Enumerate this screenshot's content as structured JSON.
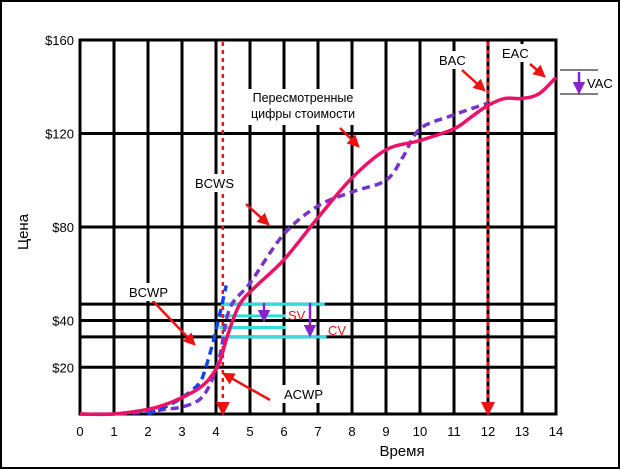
{
  "chart_data": {
    "type": "line",
    "xlabel": "Время",
    "ylabel": "Цена",
    "x_ticks": [
      "0",
      "1",
      "2",
      "3",
      "4",
      "5",
      "6",
      "7",
      "8",
      "9",
      "10",
      "11",
      "12",
      "13",
      "14"
    ],
    "y_ticks": [
      {
        "value": 20,
        "label": "$20"
      },
      {
        "value": 40,
        "label": "$40"
      },
      {
        "value": 80,
        "label": "$80"
      },
      {
        "value": 120,
        "label": "$120"
      },
      {
        "value": 160,
        "label": "$160"
      }
    ],
    "xlim": [
      0,
      14
    ],
    "ylim": [
      0,
      160
    ],
    "grid": true,
    "series": [
      {
        "name": "Пересмотренные цифры стоимости",
        "color": "#ee1166",
        "style": "solid",
        "x": [
          0,
          1,
          2,
          2.5,
          3,
          3.5,
          3.8,
          4.1,
          4.35,
          4.7,
          5.2,
          6,
          7,
          8,
          9,
          10,
          11,
          11.5,
          12,
          12.5,
          13,
          13.5,
          14
        ],
        "y": [
          0,
          0,
          2,
          4,
          7,
          11,
          15,
          22,
          34,
          47,
          55,
          66,
          84,
          101,
          113,
          117,
          122,
          127,
          132,
          135,
          135,
          137,
          144
        ]
      },
      {
        "name": "BCWS",
        "color": "#7733cc",
        "style": "dashed",
        "x": [
          0,
          1,
          2,
          2.5,
          3,
          3.5,
          3.8,
          4.1,
          4.4,
          5,
          6,
          7,
          8,
          9,
          9.5,
          10,
          11,
          12
        ],
        "y": [
          0,
          0,
          1,
          2,
          3,
          6,
          12,
          24,
          45,
          56,
          77,
          89,
          95,
          100,
          110,
          122,
          128,
          133
        ]
      },
      {
        "name": "BCWP",
        "color": "#1144ee",
        "style": "dashed",
        "x": [
          2,
          2.5,
          3,
          3.5,
          3.7,
          3.9,
          4.1,
          4.3
        ],
        "y": [
          0,
          3,
          7,
          13,
          20,
          30,
          42,
          55
        ]
      }
    ],
    "reference_lines": [
      {
        "x": 4.2,
        "color": "#ee1111"
      },
      {
        "x": 12,
        "color": "#ee1111"
      }
    ],
    "reference_levels": [
      47,
      42,
      37,
      33
    ],
    "annotations": [
      {
        "text": "BAC"
      },
      {
        "text": "EAC"
      },
      {
        "text": "VAC"
      },
      {
        "text": "Пересмотренные"
      },
      {
        "text": "цифры стоимости"
      },
      {
        "text": "BCWS"
      },
      {
        "text": "BCWP"
      },
      {
        "text": "ACWP"
      },
      {
        "text": "SV"
      },
      {
        "text": "CV"
      }
    ]
  }
}
